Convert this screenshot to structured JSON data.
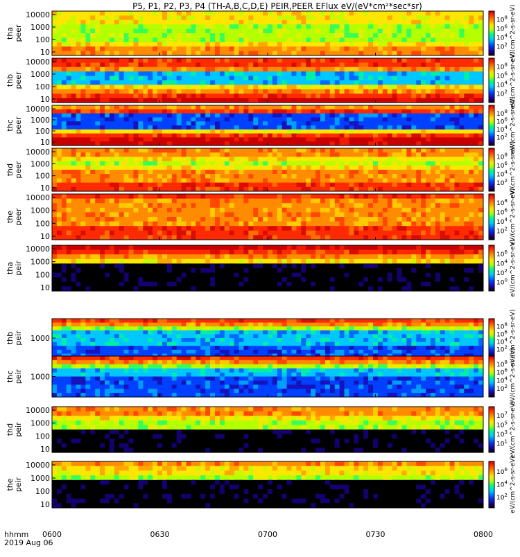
{
  "title": "P5, P1, P2, P3, P4 (TH-A,B,C,D,E) PEIR,PEER EFlux eV/(eV*cm²*sec*sr)",
  "time_axis": {
    "label": "hhmm",
    "date": "2019 Aug 06",
    "ticks": [
      "0600",
      "0630",
      "0700",
      "0730",
      "0800"
    ]
  },
  "colorbar": {
    "units_label": "eV/(cm^2-s-sr-eV)",
    "colors": [
      "#000000",
      "#2000a0",
      "#0040ff",
      "#00c8ff",
      "#00ff80",
      "#b4ff00",
      "#ffe600",
      "#ff8c00",
      "#ff2a00",
      "#c80000"
    ]
  },
  "chart_data": [
    {
      "type": "heatmap",
      "probe": "tha",
      "species": "peer",
      "ylabel": [
        "tha",
        "peer"
      ],
      "y_ticks": [
        "10",
        "100",
        "1000",
        "10000"
      ],
      "colorbar_ticks": [
        "10^2",
        "10^4",
        "10^6",
        "10^8"
      ],
      "colorbar_label": "eV/(cm^2-s-sr-eV)"
    },
    {
      "type": "heatmap",
      "probe": "thb",
      "species": "peer",
      "ylabel": [
        "thb",
        "peer"
      ],
      "y_ticks": [
        "10",
        "100",
        "1000",
        "10000"
      ],
      "colorbar_ticks": [
        "10^2",
        "10^4",
        "10^6",
        "10^8"
      ],
      "colorbar_label": "eV/(cm^2-s-sr-eV)"
    },
    {
      "type": "heatmap",
      "probe": "thc",
      "species": "peer",
      "ylabel": [
        "thc",
        "peer"
      ],
      "y_ticks": [
        "10",
        "100",
        "1000",
        "10000"
      ],
      "colorbar_ticks": [
        "10^2",
        "10^4",
        "10^6",
        "10^8"
      ],
      "colorbar_label": "eV/(cm^2-s-sr-eV)"
    },
    {
      "type": "heatmap",
      "probe": "thd",
      "species": "peer",
      "ylabel": [
        "thd",
        "peer"
      ],
      "y_ticks": [
        "10",
        "100",
        "1000",
        "10000"
      ],
      "colorbar_ticks": [
        "10^2",
        "10^4",
        "10^6",
        "10^8"
      ],
      "colorbar_label": "eV/(cm^2-s-sr-eV)"
    },
    {
      "type": "heatmap",
      "probe": "the",
      "species": "peer",
      "ylabel": [
        "the",
        "peer"
      ],
      "y_ticks": [
        "10",
        "100",
        "1000",
        "10000"
      ],
      "colorbar_ticks": [
        "10^2",
        "10^4",
        "10^6",
        "10^8"
      ],
      "colorbar_label": "eV/(cm^2-s-sr-eV)"
    },
    {
      "type": "heatmap",
      "probe": "tha",
      "species": "peir",
      "ylabel": [
        "tha",
        "peir"
      ],
      "y_ticks": [
        "10",
        "100",
        "1000",
        "10000"
      ],
      "colorbar_ticks": [
        "10^0",
        "10^2",
        "10^4",
        "10^6"
      ],
      "colorbar_label": "eV/(cm^2-s-sr-eV)"
    },
    {
      "type": "heatmap",
      "probe": "thb",
      "species": "peir",
      "ylabel": [
        "thb",
        "peir"
      ],
      "y_ticks": [
        "1000"
      ],
      "colorbar_ticks": [
        "10^2",
        "10^4",
        "10^6",
        "10^8"
      ],
      "colorbar_label": "eV/(cm^2-s-sr-eV)"
    },
    {
      "type": "heatmap",
      "probe": "thc",
      "species": "peir",
      "ylabel": [
        "thc",
        "peir"
      ],
      "y_ticks": [
        "1000"
      ],
      "colorbar_ticks": [
        "10^2",
        "10^4",
        "10^6",
        "10^8"
      ],
      "colorbar_label": "eV/(cm^2-s-sr-eV)"
    },
    {
      "type": "heatmap",
      "probe": "thd",
      "species": "peir",
      "ylabel": [
        "thd",
        "peir"
      ],
      "y_ticks": [
        "10",
        "100",
        "1000",
        "10000"
      ],
      "colorbar_ticks": [
        "10^1",
        "10^3",
        "10^5",
        "10^7"
      ],
      "colorbar_label": "eV/(cm^2-s-sr-eV)"
    },
    {
      "type": "heatmap",
      "probe": "the",
      "species": "peir",
      "ylabel": [
        "the",
        "peir"
      ],
      "y_ticks": [
        "10",
        "100",
        "1000",
        "10000"
      ],
      "colorbar_ticks": [
        "10^2",
        "10^4",
        "10^6"
      ],
      "colorbar_label": "eV/(cm^2-s-sr-eV)"
    }
  ]
}
